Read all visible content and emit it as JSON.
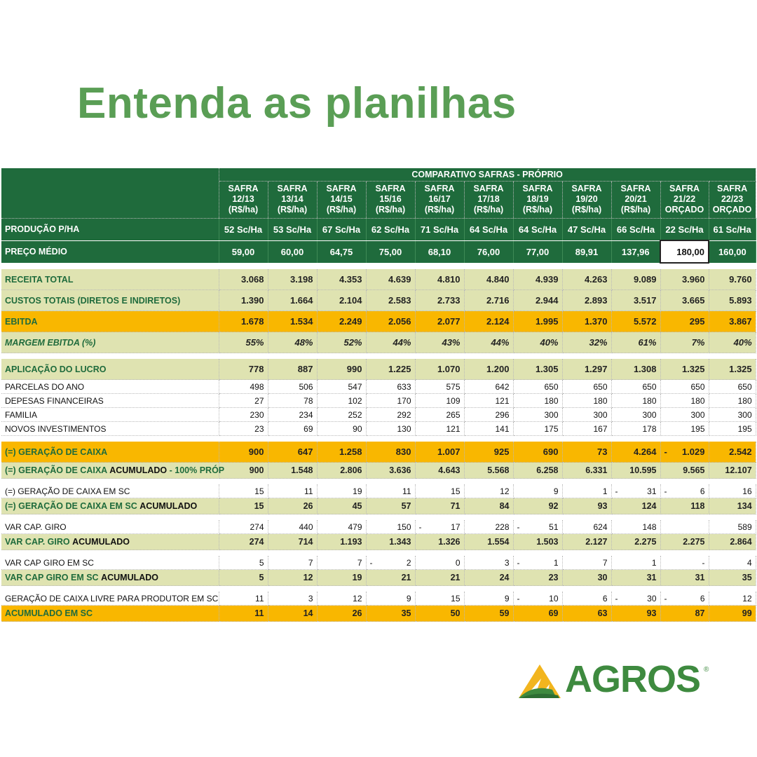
{
  "title": "Entenda as planilhas",
  "header": {
    "top": "COMPARATIVO SAFRAS - PRÓPRIO",
    "columns": [
      {
        "l1": "SAFRA",
        "l2": "12/13",
        "l3": "(R$/ha)"
      },
      {
        "l1": "SAFRA",
        "l2": "13/14",
        "l3": "(R$/ha)"
      },
      {
        "l1": "SAFRA",
        "l2": "14/15",
        "l3": "(R$/ha)"
      },
      {
        "l1": "SAFRA",
        "l2": "15/16",
        "l3": "(R$/ha)"
      },
      {
        "l1": "SAFRA",
        "l2": "16/17",
        "l3": "(R$/ha)"
      },
      {
        "l1": "SAFRA",
        "l2": "17/18",
        "l3": "(R$/ha)"
      },
      {
        "l1": "SAFRA",
        "l2": "18/19",
        "l3": "(R$/ha)"
      },
      {
        "l1": "SAFRA",
        "l2": "19/20",
        "l3": "(R$/ha)"
      },
      {
        "l1": "SAFRA",
        "l2": "20/21",
        "l3": "(R$/ha)"
      },
      {
        "l1": "SAFRA",
        "l2": "21/22",
        "l3": "ORÇADO"
      },
      {
        "l1": "SAFRA",
        "l2": "22/23",
        "l3": "ORÇADO"
      }
    ]
  },
  "rows": [
    {
      "label": "PRODUÇÃO P/HA",
      "values": [
        "52 Sc/Ha",
        "53 Sc/Ha",
        "67 Sc/Ha",
        "62 Sc/Ha",
        "71 Sc/Ha",
        "64 Sc/Ha",
        "64 Sc/Ha",
        "47 Sc/Ha",
        "66 Sc/Ha",
        "22 Sc/Ha",
        "61 Sc/Ha"
      ]
    },
    {
      "label": "PREÇO MÉDIO",
      "values": [
        "59,00",
        "60,00",
        "64,75",
        "75,00",
        "68,10",
        "76,00",
        "77,00",
        "89,91",
        "137,96",
        "180,00",
        "160,00"
      ]
    },
    {
      "label": "RECEITA TOTAL",
      "values": [
        "3.068",
        "3.198",
        "4.353",
        "4.639",
        "4.810",
        "4.840",
        "4.939",
        "4.263",
        "9.089",
        "3.960",
        "9.760"
      ]
    },
    {
      "label": "CUSTOS TOTAIS (DIRETOS E INDIRETOS)",
      "values": [
        "1.390",
        "1.664",
        "2.104",
        "2.583",
        "2.733",
        "2.716",
        "2.944",
        "2.893",
        "3.517",
        "3.665",
        "5.893"
      ]
    },
    {
      "label": "EBITDA",
      "values": [
        "1.678",
        "1.534",
        "2.249",
        "2.056",
        "2.077",
        "2.124",
        "1.995",
        "1.370",
        "5.572",
        "295",
        "3.867"
      ]
    },
    {
      "label": "MARGEM EBITDA (%)",
      "values": [
        "55%",
        "48%",
        "52%",
        "44%",
        "43%",
        "44%",
        "40%",
        "32%",
        "61%",
        "7%",
        "40%"
      ]
    },
    {
      "label": "APLICAÇÃO DO LUCRO",
      "values": [
        "778",
        "887",
        "990",
        "1.225",
        "1.070",
        "1.200",
        "1.305",
        "1.297",
        "1.308",
        "1.325",
        "1.325"
      ]
    },
    {
      "label": "PARCELAS DO ANO",
      "values": [
        "498",
        "506",
        "547",
        "633",
        "575",
        "642",
        "650",
        "650",
        "650",
        "650",
        "650"
      ]
    },
    {
      "label": "DEPESAS FINANCEIRAS",
      "values": [
        "27",
        "78",
        "102",
        "170",
        "109",
        "121",
        "180",
        "180",
        "180",
        "180",
        "180"
      ]
    },
    {
      "label": "FAMILIA",
      "values": [
        "230",
        "234",
        "252",
        "292",
        "265",
        "296",
        "300",
        "300",
        "300",
        "300",
        "300"
      ]
    },
    {
      "label": "NOVOS INVESTIMENTOS",
      "values": [
        "23",
        "69",
        "90",
        "130",
        "121",
        "141",
        "175",
        "167",
        "178",
        "195",
        "195"
      ]
    },
    {
      "label": "(=) GERAÇÃO DE CAIXA",
      "values": [
        "900",
        "647",
        "1.258",
        "830",
        "1.007",
        "925",
        "690",
        "73",
        "4.264",
        "1.029",
        "2.542"
      ]
    },
    {
      "label": "(=) GERAÇÃO DE CAIXA",
      "label_bold": "ACUMULADO",
      "label_tail": "- 100% PRÓP",
      "values": [
        "900",
        "1.548",
        "2.806",
        "3.636",
        "4.643",
        "5.568",
        "6.258",
        "6.331",
        "10.595",
        "9.565",
        "12.107"
      ]
    },
    {
      "label": "(=) GERAÇÃO DE CAIXA EM SC",
      "values": [
        "15",
        "11",
        "19",
        "11",
        "15",
        "12",
        "9",
        "1",
        "31",
        "6",
        "16"
      ]
    },
    {
      "label": "(=) GERAÇÃO DE CAIXA EM SC",
      "label_bold": "ACUMULADO",
      "values": [
        "15",
        "26",
        "45",
        "57",
        "71",
        "84",
        "92",
        "93",
        "124",
        "118",
        "134"
      ]
    },
    {
      "label": "VAR CAP. GIRO",
      "values": [
        "274",
        "440",
        "479",
        "150",
        "17",
        "228",
        "51",
        "624",
        "148",
        "",
        "589"
      ]
    },
    {
      "label": "VAR CAP. GIRO",
      "label_bold": "ACUMULADO",
      "values": [
        "274",
        "714",
        "1.193",
        "1.343",
        "1.326",
        "1.554",
        "1.503",
        "2.127",
        "2.275",
        "2.275",
        "2.864"
      ]
    },
    {
      "label": "VAR CAP GIRO EM SC",
      "values": [
        "5",
        "7",
        "7",
        "2",
        "0",
        "3",
        "1",
        "7",
        "1",
        "-",
        "4"
      ]
    },
    {
      "label": "VAR CAP GIRO EM SC",
      "label_bold": "ACUMULADO",
      "values": [
        "5",
        "12",
        "19",
        "21",
        "21",
        "24",
        "23",
        "30",
        "31",
        "31",
        "35"
      ]
    },
    {
      "label": "GERAÇÃO DE CAIXA LIVRE PARA PRODUTOR EM SC",
      "values": [
        "11",
        "3",
        "12",
        "9",
        "15",
        "9",
        "10",
        "6",
        "30",
        "6",
        "12"
      ]
    },
    {
      "label": "ACUMULADO EM SC",
      "values": [
        "11",
        "14",
        "26",
        "35",
        "50",
        "59",
        "69",
        "63",
        "93",
        "87",
        "99"
      ]
    }
  ],
  "neg_mark": "-",
  "negatives": {
    "11": [
      9
    ],
    "13": [
      8,
      9
    ],
    "15": [
      4,
      6
    ],
    "17": [
      3,
      6
    ],
    "19": [
      6,
      8,
      9
    ]
  },
  "logo": {
    "text": "AGROS",
    "reg": "®"
  },
  "colors": {
    "dark_green": "#1f6b3c",
    "beige": "#dfe3b1",
    "orange": "#f9b700",
    "title_green": "#5a9e55"
  }
}
